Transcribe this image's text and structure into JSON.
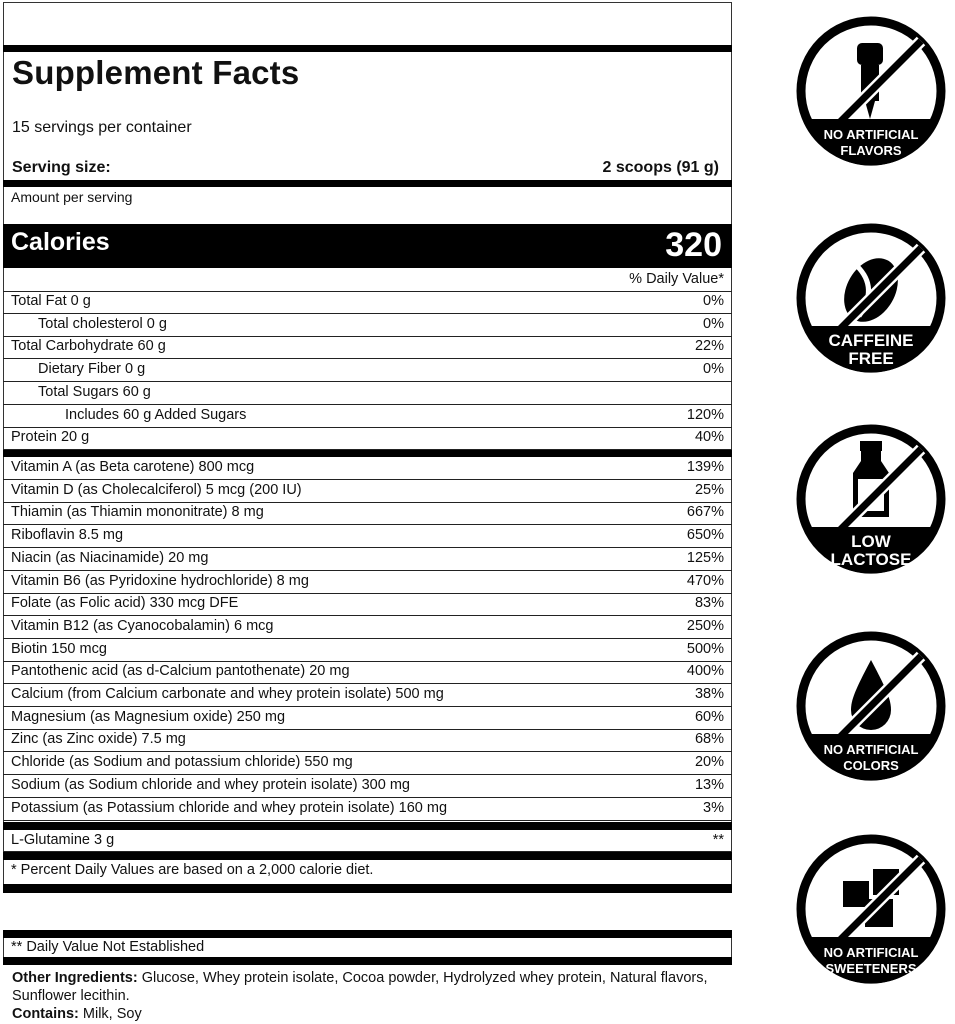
{
  "label": {
    "title": "Supplement Facts",
    "servings": "15 servings per container",
    "serving_size_label": "Serving size:",
    "serving_size_value": "2 scoops (91 g)",
    "amount_per_serving": "Amount per serving",
    "calories_label": "Calories",
    "calories_value": "320",
    "dv_header": "% Daily Value*",
    "macros": [
      {
        "label": "Total Fat 0 g",
        "dv": "0%",
        "indent": 0
      },
      {
        "label": "Total cholesterol 0 g",
        "dv": "0%",
        "indent": 1
      },
      {
        "label": "Total Carbohydrate 60 g",
        "dv": "22%",
        "indent": 0
      },
      {
        "label": "Dietary Fiber 0 g",
        "dv": "0%",
        "indent": 1
      },
      {
        "label": "Total Sugars 60 g",
        "dv": "",
        "indent": 1
      },
      {
        "label": "Includes 60 g Added Sugars",
        "dv": "120%",
        "indent": 2
      },
      {
        "label": "Protein 20 g",
        "dv": "40%",
        "indent": 0
      }
    ],
    "micros": [
      {
        "label": "Vitamin A (as Beta carotene) 800 mcg",
        "dv": "139%"
      },
      {
        "label": "Vitamin D (as Cholecalciferol) 5 mcg (200 IU)",
        "dv": "25%"
      },
      {
        "label": "Thiamin (as Thiamin mononitrate) 8 mg",
        "dv": "667%"
      },
      {
        "label": "Riboflavin 8.5 mg",
        "dv": "650%"
      },
      {
        "label": "Niacin (as Niacinamide) 20 mg",
        "dv": "125%"
      },
      {
        "label": "Vitamin B6 (as Pyridoxine hydrochloride) 8 mg",
        "dv": "470%"
      },
      {
        "label": "Folate (as Folic acid) 330 mcg DFE",
        "dv": "83%"
      },
      {
        "label": "Vitamin B12 (as Cyanocobalamin) 6 mcg",
        "dv": "250%"
      },
      {
        "label": "Biotin 150 mcg",
        "dv": "500%"
      },
      {
        "label": "Pantothenic acid (as d-Calcium pantothenate) 20 mg",
        "dv": "400%"
      },
      {
        "label": "Calcium (from Calcium carbonate and whey protein isolate) 500 mg",
        "dv": "38%"
      },
      {
        "label": "Magnesium (as Magnesium oxide) 250 mg",
        "dv": "60%"
      },
      {
        "label": "Zinc (as Zinc oxide) 7.5 mg",
        "dv": "68%"
      },
      {
        "label": "Chloride (as Sodium and potassium chloride) 550 mg",
        "dv": "20%"
      },
      {
        "label": "Sodium (as Sodium chloride and whey protein isolate) 300 mg",
        "dv": "13%"
      },
      {
        "label": "Potassium (as Potassium chloride and whey protein isolate) 160 mg",
        "dv": "3%"
      }
    ],
    "glutamine": {
      "label": "L-Glutamine 3 g",
      "dv": "**"
    },
    "footnote": "*  Percent Daily Values are based on a 2,000 calorie diet.",
    "not_established": "** Daily Value Not Established",
    "other_ingredients_label": "Other Ingredients:",
    "other_ingredients": " Glucose, Whey protein isolate, Cocoa powder, Hydrolyzed whey protein, Natural flavors,",
    "other_ingredients_2": "Sunflower lecithin.",
    "contains_label": "Contains:",
    "contains": " Milk, Soy"
  },
  "badges": [
    {
      "icon": "dropper-icon",
      "line1": "NO ARTIFICIAL",
      "line2": "FLAVORS"
    },
    {
      "icon": "coffee-bean-icon",
      "line1": "CAFFEINE",
      "line2": "FREE"
    },
    {
      "icon": "milk-bottle-icon",
      "line1": "LOW",
      "line2": "LACTOSE"
    },
    {
      "icon": "drop-icon",
      "line1": "NO ARTIFICIAL",
      "line2": "COLORS"
    },
    {
      "icon": "sugar-cubes-icon",
      "line1": "NO ARTIFICIAL",
      "line2": "SWEETENERS"
    }
  ]
}
